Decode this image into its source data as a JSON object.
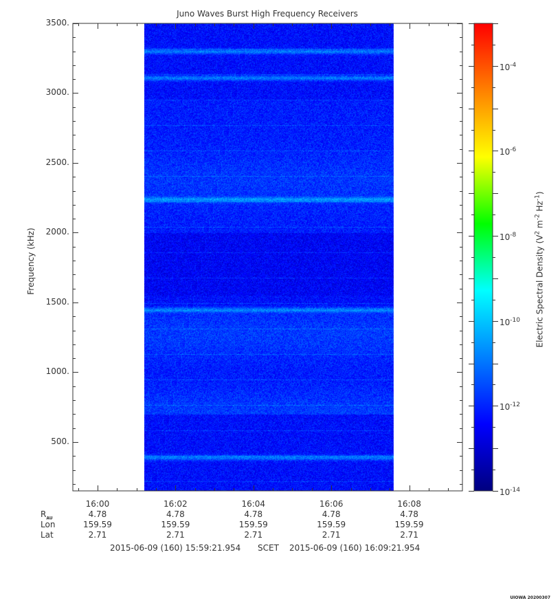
{
  "chart_data": {
    "type": "heatmap",
    "title": "Juno Waves Burst High Frequency Receivers",
    "ylabel": "Frequency (kHz)",
    "ylim": [
      150,
      3500
    ],
    "y_ticks": [
      500,
      1000,
      1500,
      2000,
      2500,
      3000,
      3500
    ],
    "y_tick_labels": [
      "500.",
      "1000.",
      "1500.",
      "2000.",
      "2500.",
      "3000.",
      "3500."
    ],
    "x_ticks": [
      "16:00",
      "16:02",
      "16:04",
      "16:06",
      "16:08"
    ],
    "x_range": [
      "15:59:21.954",
      "16:09:21.954"
    ],
    "data_time_range": [
      "16:01:12",
      "16:07:36"
    ],
    "colorbar": {
      "label": "Electric Spectral Density (V^2 m^-2 Hz^-1)",
      "scale": "log",
      "range": [
        1e-14,
        0.001
      ],
      "tick_exponents": [
        -14,
        -12,
        -10,
        -8,
        -6,
        -4
      ],
      "colormap": [
        "#00007f",
        "#0000ff",
        "#0080ff",
        "#00ffff",
        "#00ff00",
        "#ffff00",
        "#ff8000",
        "#ff0000"
      ]
    },
    "bright_bands_khz": [
      3300,
      3110,
      2240,
      1450,
      390
    ],
    "ephemeris": {
      "rows": [
        {
          "name": "R_AU",
          "values": [
            "4.78",
            "4.78",
            "4.78",
            "4.78",
            "4.78"
          ]
        },
        {
          "name": "Lon",
          "values": [
            "159.59",
            "159.59",
            "159.59",
            "159.59",
            "159.59"
          ]
        },
        {
          "name": "Lat",
          "values": [
            "2.71",
            "2.71",
            "2.71",
            "2.71",
            "2.71"
          ]
        }
      ]
    },
    "range_text": {
      "start": "2015-06-09 (160) 15:59:21.954",
      "mid": "SCET",
      "end": "2015-06-09 (160) 16:09:21.954"
    }
  },
  "labels": {
    "r": "R",
    "r_sub": "AU",
    "cb_prefix": "Electric Spectral Density (V",
    "cb_sup1": "2",
    "cb_mid": " m",
    "cb_sup2": "-2",
    "cb_mid2": " Hz",
    "cb_sup3": "-1",
    "cb_suffix": ")",
    "tick_base": "10"
  },
  "stamp": "UIOWA 20200307"
}
